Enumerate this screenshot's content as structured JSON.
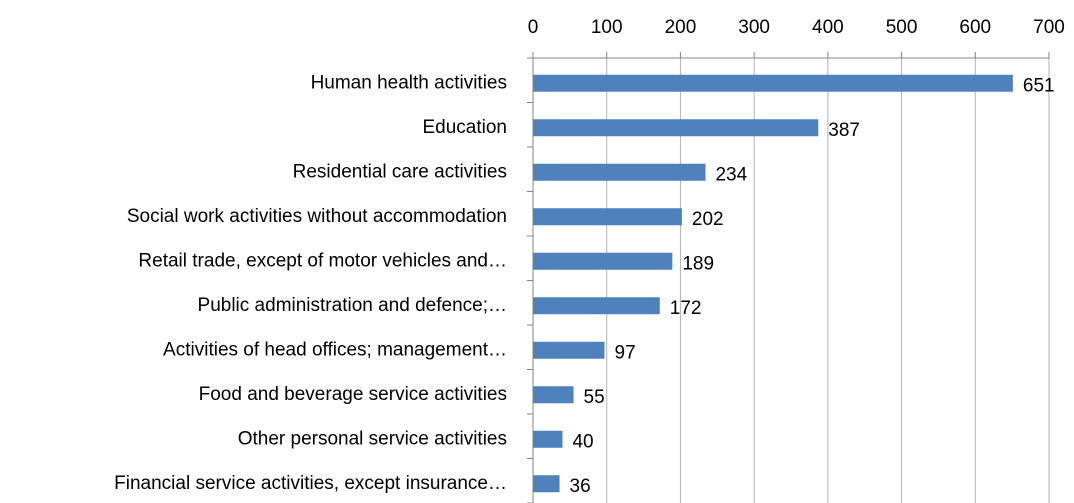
{
  "chart_data": {
    "type": "bar",
    "orientation": "horizontal",
    "categories": [
      "Human health activities",
      "Education",
      "Residential care activities",
      "Social work activities without accommodation",
      "Retail trade, except of motor vehicles and…",
      "Public administration and defence;…",
      "Activities of head offices; management…",
      "Food and beverage service activities",
      "Other personal service activities",
      "Financial service activities, except insurance…"
    ],
    "values": [
      651,
      387,
      234,
      202,
      189,
      172,
      97,
      55,
      40,
      36
    ],
    "color": "#4f81bd",
    "xlim": [
      0,
      700
    ],
    "xticks": [
      0,
      100,
      200,
      300,
      400,
      500,
      600,
      700
    ],
    "grid": true
  }
}
